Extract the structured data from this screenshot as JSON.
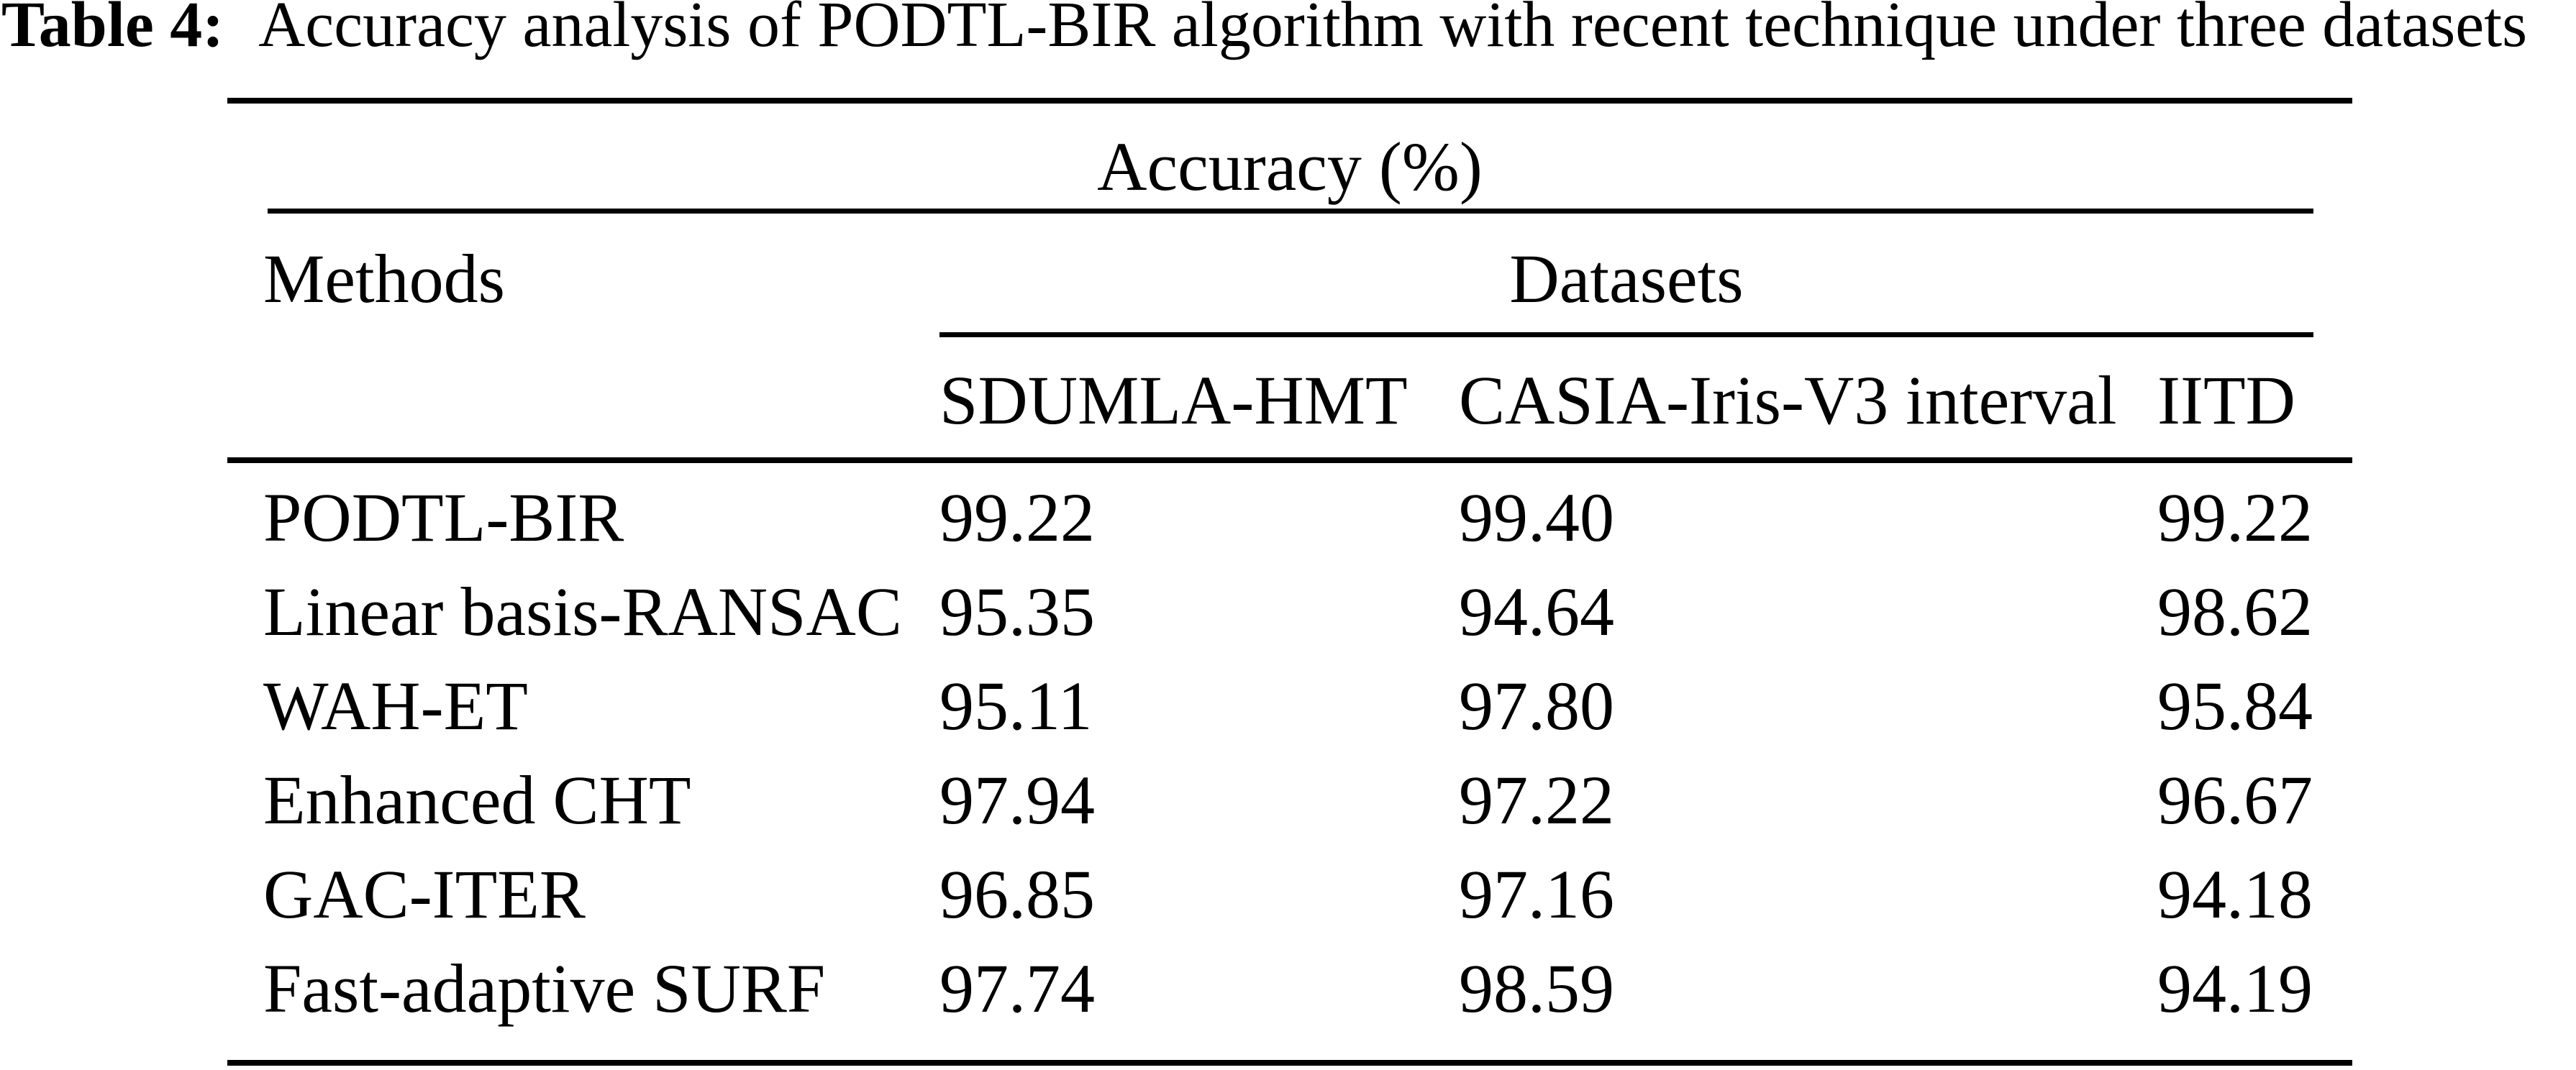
{
  "title": {
    "label": "Table 4:",
    "text": "Accuracy analysis of PODTL-BIR algorithm with recent technique under three datasets"
  },
  "table": {
    "spanning_header": "Accuracy (%)",
    "methods_header": "Methods",
    "datasets_header": "Datasets",
    "dataset_columns": [
      "SDUMLA-HMT",
      "CASIA-Iris-V3 interval",
      "IITD"
    ],
    "rows": [
      {
        "method": "PODTL-BIR",
        "values": [
          "99.22",
          "99.40",
          "99.22"
        ]
      },
      {
        "method": "Linear basis-RANSAC",
        "values": [
          "95.35",
          "94.64",
          "98.62"
        ]
      },
      {
        "method": "WAH-ET",
        "values": [
          "95.11",
          "97.80",
          "95.84"
        ]
      },
      {
        "method": "Enhanced CHT",
        "values": [
          "97.94",
          "97.22",
          "96.67"
        ]
      },
      {
        "method": "GAC-ITER",
        "values": [
          "96.85",
          "97.16",
          "94.18"
        ]
      },
      {
        "method": "Fast-adaptive SURF",
        "values": [
          "97.74",
          "98.59",
          "94.19"
        ]
      }
    ]
  },
  "chart_data": {
    "type": "table",
    "title": "Table 4: Accuracy analysis of PODTL-BIR algorithm with recent technique under three datasets",
    "value_unit": "Accuracy (%)",
    "columns": [
      "Methods",
      "SDUMLA-HMT",
      "CASIA-Iris-V3 interval",
      "IITD"
    ],
    "rows": [
      [
        "PODTL-BIR",
        99.22,
        99.4,
        99.22
      ],
      [
        "Linear basis-RANSAC",
        95.35,
        94.64,
        98.62
      ],
      [
        "WAH-ET",
        95.11,
        97.8,
        95.84
      ],
      [
        "Enhanced CHT",
        97.94,
        97.22,
        96.67
      ],
      [
        "GAC-ITER",
        96.85,
        97.16,
        94.18
      ],
      [
        "Fast-adaptive SURF",
        97.74,
        98.59,
        94.19
      ]
    ]
  }
}
